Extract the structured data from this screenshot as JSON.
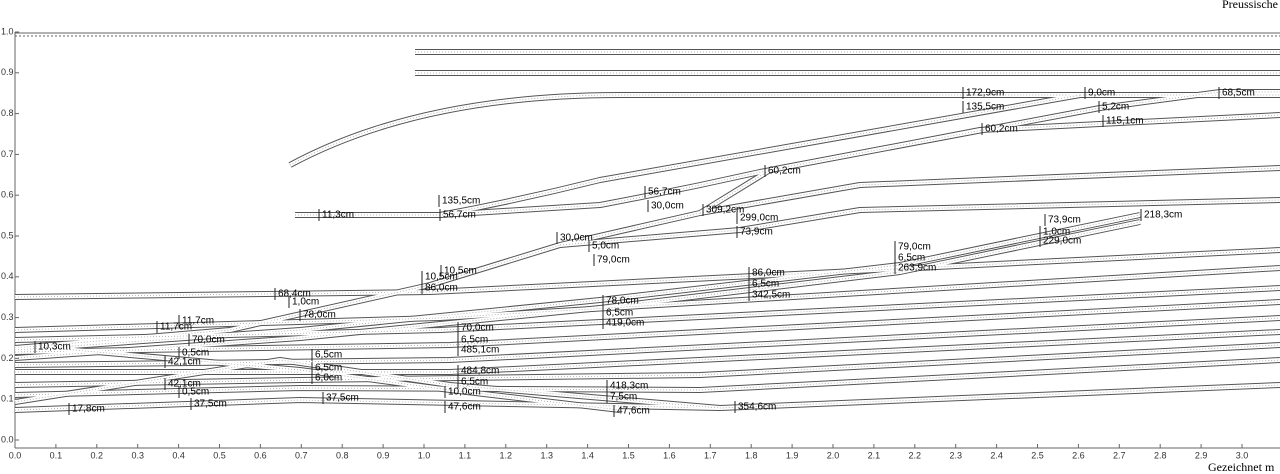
{
  "header": {
    "title": "Preussische"
  },
  "footer": {
    "text": "Gezeichnet m"
  },
  "x_axis": {
    "ticks": [
      "0.0",
      "0.1",
      "0.2",
      "0.3",
      "0.4",
      "0.5",
      "0.6",
      "0.7",
      "0.8",
      "0.9",
      "1.0",
      "1.1",
      "1.2",
      "1.3",
      "1.4",
      "1.5",
      "1.6",
      "1.7",
      "1.8",
      "1.9",
      "2.0",
      "2.1",
      "2.2",
      "2.3",
      "2.4",
      "2.5",
      "2.6",
      "2.7",
      "2.8",
      "2.9",
      "3.0"
    ]
  },
  "y_axis": {
    "ticks": [
      "1.0",
      "0.9",
      "0.8",
      "0.7",
      "0.6",
      "0.5",
      "0.4",
      "0.3",
      "0.2",
      "0.1",
      "0.0"
    ]
  },
  "labels": [
    "172,9cm",
    "9,0cm",
    "68,5cm",
    "135,5cm",
    "5,2cm",
    "60,2cm",
    "115,1cm",
    "60,2cm",
    "135,5cm",
    "56,7cm",
    "30,0cm",
    "11,3cm",
    "56,7cm",
    "309,2cm",
    "299,0cm",
    "73,9cm",
    "30,0cm",
    "5,0cm",
    "79,0cm",
    "73,9cm",
    "218,3cm",
    "1,0cm",
    "229,0cm",
    "79,0cm",
    "6,5cm",
    "263,9cm",
    "10,5cm",
    "10,5cm",
    "86,0cm",
    "86,0cm",
    "6,5cm",
    "342,5cm",
    "68,4cm",
    "1,0cm",
    "78,0cm",
    "78,0cm",
    "6,5cm",
    "419,0cm",
    "11,7cm",
    "11,7cm",
    "70,0cm",
    "6,5cm",
    "485,1cm",
    "10,3cm",
    "70,0cm",
    "0,5cm",
    "42,1cm",
    "6,5cm",
    "6,5cm",
    "6,0cm",
    "484,8cm",
    "6,5cm",
    "10,0cm",
    "42,1cm",
    "0,5cm",
    "37,5cm",
    "17,8cm",
    "37,5cm",
    "47,6cm",
    "418,3cm",
    "7,5cm",
    "47,6cm",
    "354,6cm"
  ]
}
